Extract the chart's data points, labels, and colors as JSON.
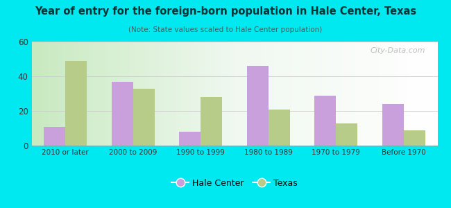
{
  "title": "Year of entry for the foreign-born population in Hale Center, Texas",
  "subtitle": "(Note: State values scaled to Hale Center population)",
  "categories": [
    "2010 or later",
    "2000 to 2009",
    "1990 to 1999",
    "1980 to 1989",
    "1970 to 1979",
    "Before 1970"
  ],
  "hale_center": [
    11,
    37,
    8,
    46,
    29,
    24
  ],
  "texas": [
    49,
    33,
    28,
    21,
    13,
    9
  ],
  "hale_color": "#c9a0dc",
  "texas_color": "#b8cc8a",
  "ylim": [
    0,
    60
  ],
  "yticks": [
    0,
    20,
    40,
    60
  ],
  "background_outer": "#00e8f0",
  "bar_width": 0.32,
  "legend_labels": [
    "Hale Center",
    "Texas"
  ],
  "watermark": "City-Data.com"
}
